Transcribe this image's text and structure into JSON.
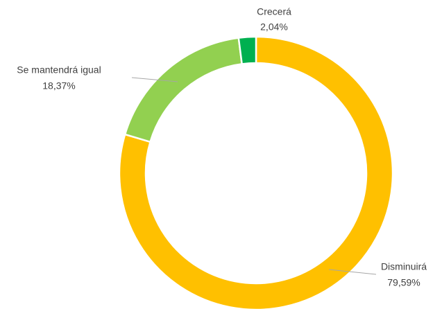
{
  "chart_data": {
    "type": "donut",
    "categories": [
      "Disminuirá",
      "Se mantendrá igual",
      "Crecerá"
    ],
    "values": [
      79.59,
      18.37,
      2.04
    ],
    "value_labels": [
      "79,59%",
      "18,37%",
      "2,04%"
    ],
    "colors": [
      "#FFC000",
      "#92D050",
      "#00B050"
    ]
  }
}
